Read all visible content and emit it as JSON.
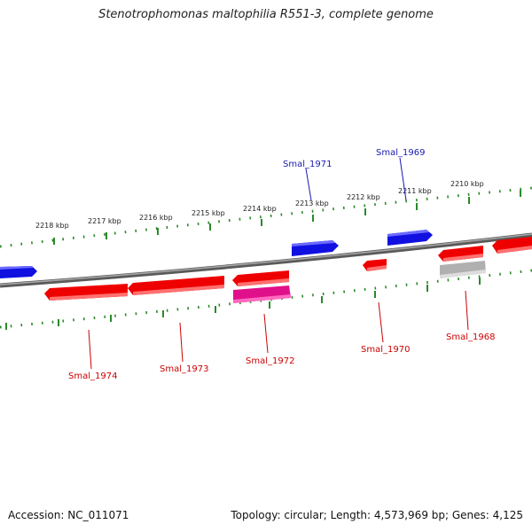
{
  "title": "Stenotrophomonas maltophilia R551-3, complete genome",
  "footer": {
    "accession": "Accession: NC_011071",
    "topology": "Topology: circular; Length: 4,573,969 bp; Genes: 4,125"
  },
  "colors": {
    "forward_gene": "#1010e0",
    "reverse_gene": "#ee0000",
    "reverse_gene_alt": "#e0108a",
    "pseudo_gene": "#b0b0b0",
    "backbone": "#777777",
    "tick": "#2a8a2a",
    "forward_label": "#1a1ab0",
    "reverse_label": "#cc0000"
  },
  "kbp_ticks": [
    {
      "id": "2218",
      "label": "2218 kbp"
    },
    {
      "id": "2217",
      "label": "2217 kbp"
    },
    {
      "id": "2216",
      "label": "2216 kbp"
    },
    {
      "id": "2215",
      "label": "2215 kbp"
    },
    {
      "id": "2214",
      "label": "2214 kbp"
    },
    {
      "id": "2213",
      "label": "2213 kbp"
    },
    {
      "id": "2212",
      "label": "2212 kbp"
    },
    {
      "id": "2211",
      "label": "2211 kbp"
    },
    {
      "id": "2210",
      "label": "2210 kbp"
    }
  ],
  "genes": [
    {
      "id": "Smal_1971",
      "label": "Smal_1971",
      "strand": "forward"
    },
    {
      "id": "Smal_1969",
      "label": "Smal_1969",
      "strand": "forward"
    },
    {
      "id": "Smal_1974",
      "label": "Smal_1974",
      "strand": "reverse"
    },
    {
      "id": "Smal_1973",
      "label": "Smal_1973",
      "strand": "reverse"
    },
    {
      "id": "Smal_1972",
      "label": "Smal_1972",
      "strand": "reverse"
    },
    {
      "id": "Smal_1970",
      "label": "Smal_1970",
      "strand": "reverse"
    },
    {
      "id": "Smal_1968",
      "label": "Smal_1968",
      "strand": "reverse"
    }
  ]
}
